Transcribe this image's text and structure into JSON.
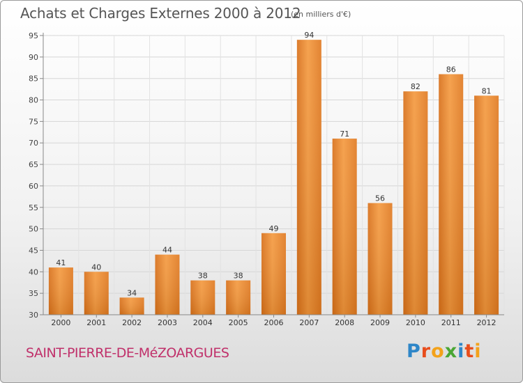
{
  "chart_data": {
    "type": "bar",
    "title": "Achats et Charges Externes 2000 à 2012",
    "unit_note": "(en milliers d'€)",
    "categories": [
      "2000",
      "2001",
      "2002",
      "2003",
      "2004",
      "2005",
      "2006",
      "2007",
      "2008",
      "2009",
      "2010",
      "2011",
      "2012"
    ],
    "values": [
      41,
      40,
      34,
      44,
      38,
      38,
      49,
      94,
      71,
      56,
      82,
      86,
      81
    ],
    "ylim": [
      30,
      95
    ],
    "yticks": [
      30,
      35,
      40,
      45,
      50,
      55,
      60,
      65,
      70,
      75,
      80,
      85,
      90,
      95
    ],
    "grid": true,
    "bar_color": "#f0943a",
    "legend": "none"
  },
  "footer": {
    "commune": "SAINT-PIERRE-DE-MéZOARGUES",
    "logo_text": "Proxiti",
    "commune_color": "#c0306a"
  }
}
